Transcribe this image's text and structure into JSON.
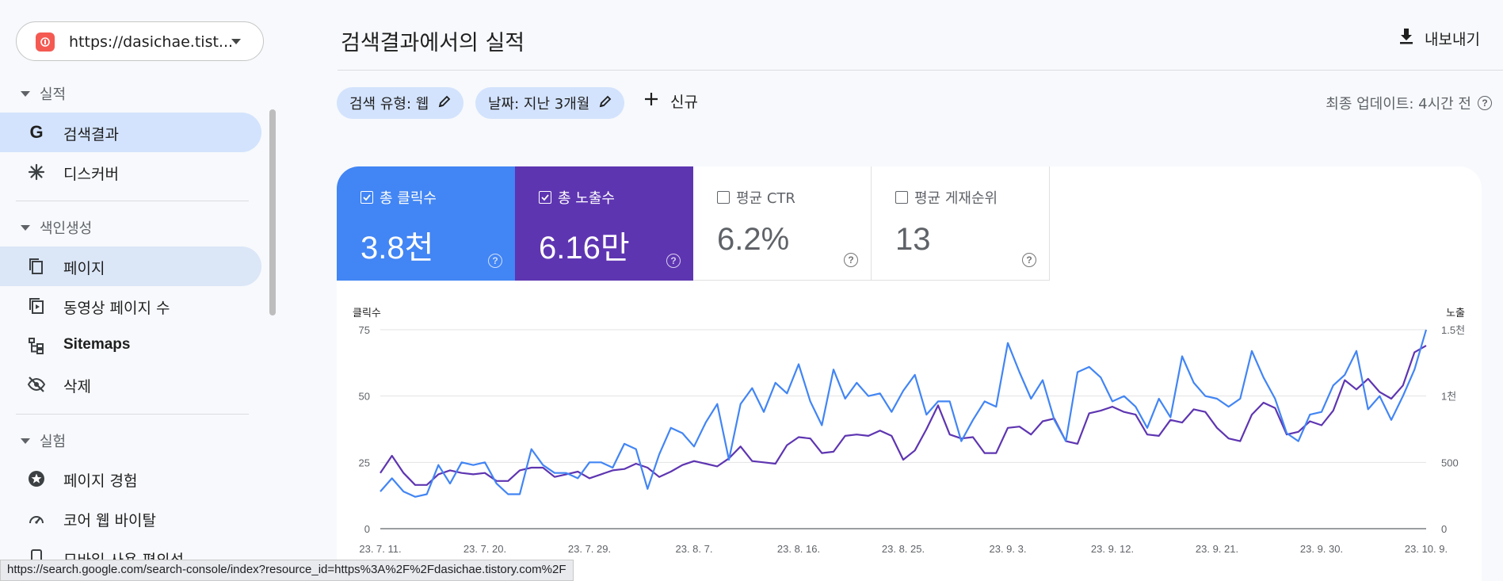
{
  "property": {
    "url": "https://dasichae.tist..."
  },
  "sidebar": {
    "sections": [
      {
        "label": "실적"
      },
      {
        "label": "색인생성"
      },
      {
        "label": "실험"
      }
    ],
    "items": [
      {
        "label": "검색결과",
        "icon": "google-g-icon"
      },
      {
        "label": "디스커버",
        "icon": "asterisk-icon"
      },
      {
        "label": "페이지",
        "icon": "pages-icon"
      },
      {
        "label": "동영상 페이지 수",
        "icon": "video-pages-icon"
      },
      {
        "label": "Sitemaps",
        "icon": "sitemap-icon"
      },
      {
        "label": "삭제",
        "icon": "eye-off-icon"
      },
      {
        "label": "페이지 경험",
        "icon": "star-circle-icon"
      },
      {
        "label": "코어 웹 바이탈",
        "icon": "speedometer-icon"
      },
      {
        "label": "모바일 사용 편의성",
        "icon": "phone-icon"
      }
    ]
  },
  "header": {
    "title": "검색결과에서의 실적",
    "export_label": "내보내기"
  },
  "filters": {
    "search_type": "검색 유형: 웹",
    "date": "날짜: 지난 3개월",
    "new_label": "신규",
    "last_update": "최종 업데이트: 4시간 전"
  },
  "metrics": [
    {
      "label": "총 클릭수",
      "value": "3.8천",
      "checked": true,
      "color": "#4285f4"
    },
    {
      "label": "총 노출수",
      "value": "6.16만",
      "checked": true,
      "color": "#5e35b1"
    },
    {
      "label": "평균 CTR",
      "value": "6.2%",
      "checked": false
    },
    {
      "label": "평균 게재순위",
      "value": "13",
      "checked": false
    }
  ],
  "status_bar": {
    "url": "https://search.google.com/search-console/index?resource_id=https%3A%2F%2Fdasichae.tistory.com%2F"
  },
  "chart_data": {
    "type": "line",
    "ylabel": "클릭수",
    "y2label": "노출",
    "left_ticks": [
      "0",
      "25",
      "50",
      "75"
    ],
    "right_ticks": [
      "0",
      "500",
      "1천",
      "1.5천"
    ],
    "ylim": [
      0,
      75
    ],
    "y2lim": [
      0,
      1500
    ],
    "x_tick_labels": [
      "23. 7. 11.",
      "23. 7. 20.",
      "23. 7. 29.",
      "23. 8. 7.",
      "23. 8. 16.",
      "23. 8. 25.",
      "23. 9. 3.",
      "23. 9. 12.",
      "23. 9. 21.",
      "23. 9. 30.",
      "23. 10. 9."
    ],
    "grid": true,
    "colors": {
      "clicks": "#4285f4",
      "impressions": "#5e35b1"
    },
    "series": [
      {
        "name": "총 클릭수",
        "axis": "left",
        "values": [
          14,
          19,
          14,
          12,
          13,
          24,
          17,
          25,
          24,
          25,
          17,
          13,
          13,
          30,
          24,
          21,
          21,
          19,
          25,
          25,
          23,
          32,
          30,
          15,
          28,
          38,
          36,
          31,
          40,
          47,
          26,
          47,
          53,
          44,
          55,
          51,
          62,
          48,
          39,
          60,
          49,
          55,
          50,
          51,
          44,
          52,
          58,
          43,
          48,
          48,
          33,
          41,
          48,
          46,
          70,
          59,
          49,
          56,
          41,
          33,
          59,
          61,
          57,
          48,
          50,
          46,
          38,
          49,
          42,
          65,
          55,
          50,
          49,
          46,
          49,
          67,
          57,
          49,
          36,
          33,
          43,
          44,
          54,
          58,
          67,
          45,
          50,
          41,
          50,
          60,
          75
        ]
      },
      {
        "name": "총 노출수",
        "axis": "right",
        "values": [
          420,
          550,
          420,
          330,
          330,
          410,
          440,
          420,
          410,
          420,
          360,
          360,
          440,
          460,
          460,
          390,
          410,
          430,
          380,
          410,
          440,
          450,
          490,
          460,
          390,
          430,
          480,
          510,
          490,
          470,
          530,
          620,
          510,
          500,
          490,
          630,
          690,
          680,
          570,
          580,
          700,
          710,
          700,
          740,
          700,
          520,
          590,
          750,
          930,
          710,
          680,
          690,
          570,
          570,
          760,
          770,
          710,
          810,
          830,
          660,
          640,
          870,
          890,
          920,
          880,
          860,
          710,
          700,
          820,
          800,
          900,
          880,
          760,
          680,
          660,
          860,
          950,
          910,
          710,
          730,
          810,
          780,
          890,
          1120,
          1050,
          1130,
          1030,
          980,
          1080,
          1330,
          1380
        ]
      }
    ]
  }
}
